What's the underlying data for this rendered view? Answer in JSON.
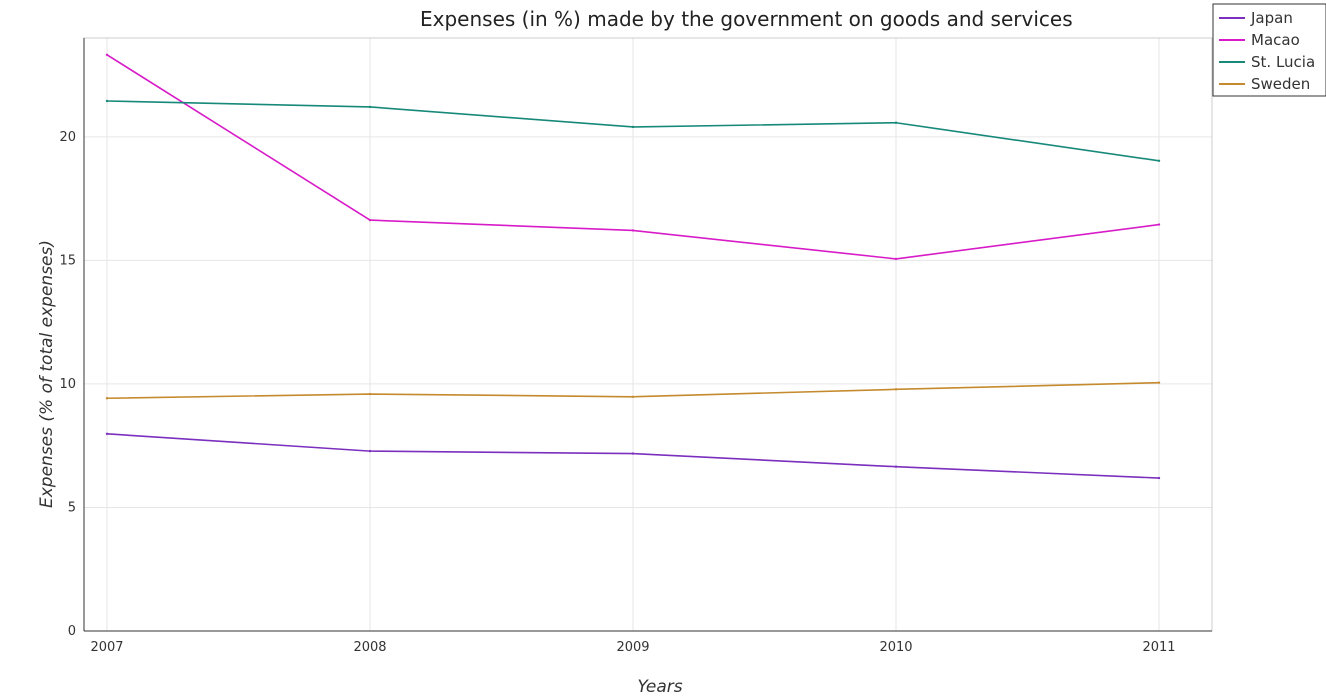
{
  "chart_data": {
    "type": "line",
    "title": "Expenses (in %) made by the government on goods and services",
    "xlabel": "Years",
    "ylabel": "Expenses (% of total expenses)",
    "x": [
      "2007",
      "2008",
      "2009",
      "2010",
      "2011"
    ],
    "ylim": [
      0,
      24
    ],
    "yticks": [
      0,
      5,
      10,
      15,
      20
    ],
    "grid": true,
    "legend_position": "top-right",
    "series": [
      {
        "name": "Japan",
        "color": "#7b2fbe",
        "values": [
          7.98,
          7.28,
          7.18,
          6.65,
          6.19
        ]
      },
      {
        "name": "Macao",
        "color": "#d81bc8",
        "values": [
          23.32,
          16.63,
          16.21,
          15.06,
          16.45
        ]
      },
      {
        "name": "St. Lucia",
        "color": "#17897a",
        "values": [
          21.45,
          21.21,
          20.4,
          20.57,
          19.03
        ]
      },
      {
        "name": "Sweden",
        "color": "#c58a2e",
        "values": [
          9.42,
          9.59,
          9.48,
          9.78,
          10.05
        ]
      }
    ]
  }
}
